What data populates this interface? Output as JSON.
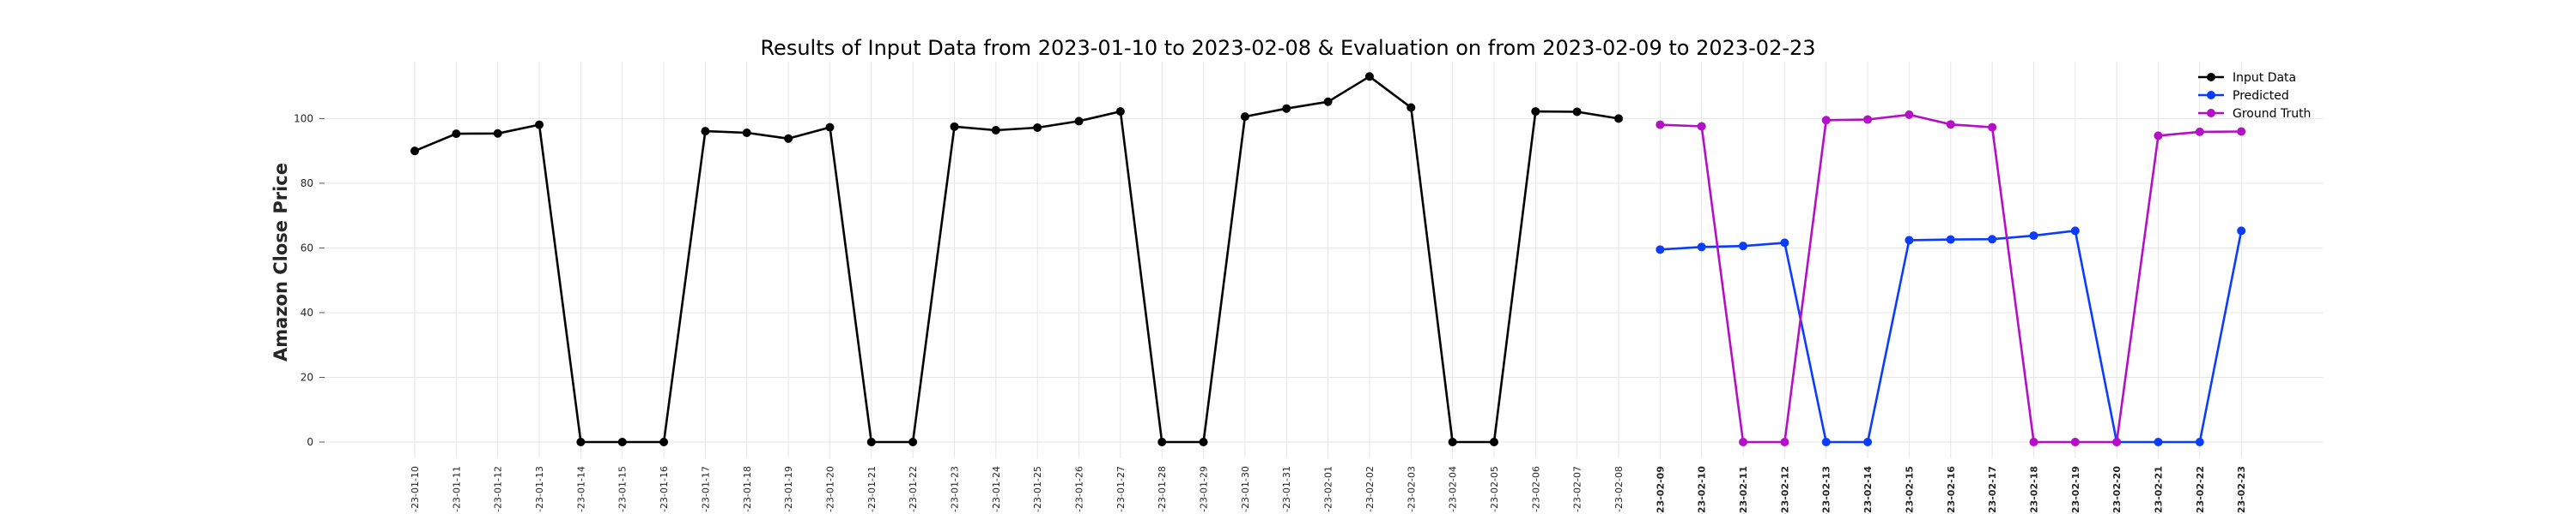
{
  "chart_data": {
    "type": "line",
    "title": "Results of Input Data from 2023-01-10 to 2023-02-08 & Evaluation on from 2023-02-09 to 2023-02-23",
    "ylabel": "Amazon Close Price",
    "xlabel": "",
    "ylim": [
      0,
      115
    ],
    "yticks": [
      0,
      20,
      40,
      60,
      80,
      100
    ],
    "grid": true,
    "legend_position": "top-right",
    "x": [
      "2023-01-10",
      "2023-01-11",
      "2023-01-12",
      "2023-01-13",
      "2023-01-14",
      "2023-01-15",
      "2023-01-16",
      "2023-01-17",
      "2023-01-18",
      "2023-01-19",
      "2023-01-20",
      "2023-01-21",
      "2023-01-22",
      "2023-01-23",
      "2023-01-24",
      "2023-01-25",
      "2023-01-26",
      "2023-01-27",
      "2023-01-28",
      "2023-01-29",
      "2023-01-30",
      "2023-01-31",
      "2023-02-01",
      "2023-02-02",
      "2023-02-03",
      "2023-02-04",
      "2023-02-05",
      "2023-02-06",
      "2023-02-07",
      "2023-02-08",
      "2023-02-09",
      "2023-02-10",
      "2023-02-11",
      "2023-02-12",
      "2023-02-13",
      "2023-02-14",
      "2023-02-15",
      "2023-02-16",
      "2023-02-17",
      "2023-02-18",
      "2023-02-19",
      "2023-02-20",
      "2023-02-21",
      "2023-02-22",
      "2023-02-23"
    ],
    "xtick_labels": [
      "-23-01-10",
      "-23-01-11",
      "-23-01-12",
      "-23-01-13",
      "-23-01-14",
      "-23-01-15",
      "-23-01-16",
      "-23-01-17",
      "-23-01-18",
      "-23-01-19",
      "-23-01-20",
      "-23-01-21",
      "-23-01-22",
      "-23-01-23",
      "-23-01-24",
      "-23-01-25",
      "-23-01-26",
      "-23-01-27",
      "-23-01-28",
      "-23-01-29",
      "-23-01-30",
      "-23-01-31",
      "-23-02-01",
      "-23-02-02",
      "-23-02-03",
      "-23-02-04",
      "-23-02-05",
      "-23-02-06",
      "-23-02-07",
      "-23-02-08",
      "-23-02-09",
      "-23-02-10",
      "-23-02-11",
      "-23-02-12",
      "-23-02-13",
      "-23-02-14",
      "-23-02-15",
      "-23-02-16",
      "-23-02-17",
      "-23-02-18",
      "-23-02-19",
      "-23-02-20",
      "-23-02-21",
      "-23-02-22",
      "-23-02-23"
    ],
    "series": [
      {
        "name": "Input Data",
        "color": "#000000",
        "x": [
          "2023-01-10",
          "2023-01-11",
          "2023-01-12",
          "2023-01-13",
          "2023-01-14",
          "2023-01-15",
          "2023-01-16",
          "2023-01-17",
          "2023-01-18",
          "2023-01-19",
          "2023-01-20",
          "2023-01-21",
          "2023-01-22",
          "2023-01-23",
          "2023-01-24",
          "2023-01-25",
          "2023-01-26",
          "2023-01-27",
          "2023-01-28",
          "2023-01-29",
          "2023-01-30",
          "2023-01-31",
          "2023-02-01",
          "2023-02-02",
          "2023-02-03",
          "2023-02-04",
          "2023-02-05",
          "2023-02-06",
          "2023-02-07",
          "2023-02-08"
        ],
        "values": [
          90.0,
          95.3,
          95.4,
          98.1,
          0,
          0,
          0,
          96.1,
          95.6,
          93.8,
          97.3,
          0,
          0,
          97.5,
          96.4,
          97.2,
          99.2,
          102.2,
          0,
          0,
          100.6,
          103.1,
          105.2,
          113.0,
          103.4,
          0,
          0,
          102.2,
          102.1,
          100.0
        ]
      },
      {
        "name": "Predicted",
        "color": "#0a3cff",
        "x": [
          "2023-02-09",
          "2023-02-10",
          "2023-02-11",
          "2023-02-12",
          "2023-02-13",
          "2023-02-14",
          "2023-02-15",
          "2023-02-16",
          "2023-02-17",
          "2023-02-18",
          "2023-02-19",
          "2023-02-20",
          "2023-02-21",
          "2023-02-22",
          "2023-02-23"
        ],
        "values": [
          59.5,
          60.3,
          60.6,
          61.6,
          0,
          0,
          62.4,
          62.6,
          62.7,
          63.8,
          65.3,
          0,
          0,
          0,
          65.3
        ]
      },
      {
        "name": "Ground Truth",
        "color": "#b40fc6",
        "x": [
          "2023-02-09",
          "2023-02-10",
          "2023-02-11",
          "2023-02-12",
          "2023-02-13",
          "2023-02-14",
          "2023-02-15",
          "2023-02-16",
          "2023-02-17",
          "2023-02-18",
          "2023-02-19",
          "2023-02-20",
          "2023-02-21",
          "2023-02-22",
          "2023-02-23"
        ],
        "values": [
          98.1,
          97.6,
          0,
          0,
          99.5,
          99.7,
          101.2,
          98.2,
          97.3,
          0,
          0,
          0,
          94.7,
          95.9,
          96.0
        ]
      }
    ]
  }
}
